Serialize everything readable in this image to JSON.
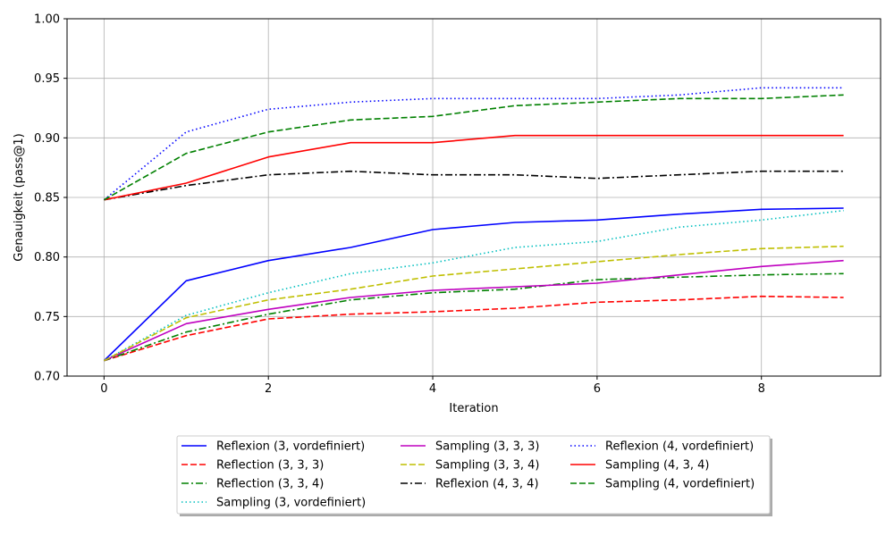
{
  "chart_data": {
    "type": "line",
    "title": "",
    "xlabel": "Iteration",
    "ylabel": "Genauigkeit (pass@1)",
    "xlim": [
      -0.45,
      9.45
    ],
    "ylim": [
      0.7,
      1.0
    ],
    "xticks": [
      0,
      2,
      4,
      6,
      8
    ],
    "yticks": [
      0.7,
      0.75,
      0.8,
      0.85,
      0.9,
      0.95,
      1.0
    ],
    "xtick_labels": [
      "0",
      "2",
      "4",
      "6",
      "8"
    ],
    "ytick_labels": [
      "0.70",
      "0.75",
      "0.80",
      "0.85",
      "0.90",
      "0.95",
      "1.00"
    ],
    "grid": true,
    "legend_position": "bottom-center",
    "x": [
      0,
      1,
      2,
      3,
      4,
      5,
      6,
      7,
      8,
      9
    ],
    "series": [
      {
        "name": "Reflexion (3, vordefiniert)",
        "color": "#0000ff",
        "style": "solid",
        "values": [
          0.713,
          0.78,
          0.797,
          0.808,
          0.823,
          0.829,
          0.831,
          0.836,
          0.84,
          0.841
        ]
      },
      {
        "name": "Reflection (3, 3, 3)",
        "color": "#ff0000",
        "style": "dashed",
        "values": [
          0.713,
          0.734,
          0.748,
          0.752,
          0.754,
          0.757,
          0.762,
          0.764,
          0.767,
          0.766
        ]
      },
      {
        "name": "Reflection (3, 3, 4)",
        "color": "#008000",
        "style": "dashdot",
        "values": [
          0.713,
          0.737,
          0.752,
          0.764,
          0.77,
          0.773,
          0.781,
          0.783,
          0.785,
          0.786
        ]
      },
      {
        "name": "Sampling (3, vordefiniert)",
        "color": "#00bfbf",
        "style": "dotted",
        "values": [
          0.713,
          0.751,
          0.77,
          0.786,
          0.795,
          0.808,
          0.813,
          0.825,
          0.831,
          0.839
        ]
      },
      {
        "name": "Sampling (3, 3, 3)",
        "color": "#bf00bf",
        "style": "solid",
        "values": [
          0.713,
          0.744,
          0.756,
          0.766,
          0.772,
          0.775,
          0.778,
          0.785,
          0.792,
          0.797
        ]
      },
      {
        "name": "Sampling (3, 3, 4)",
        "color": "#bfbf00",
        "style": "dashed",
        "values": [
          0.713,
          0.749,
          0.764,
          0.773,
          0.784,
          0.79,
          0.796,
          0.802,
          0.807,
          0.809
        ]
      },
      {
        "name": "Reflexion (4, 3, 4)",
        "color": "#000000",
        "style": "dashdot",
        "values": [
          0.848,
          0.86,
          0.869,
          0.872,
          0.869,
          0.869,
          0.866,
          0.869,
          0.872,
          0.872
        ]
      },
      {
        "name": "Reflexion (4, vordefiniert)",
        "color": "#0000ff",
        "style": "dotted",
        "values": [
          0.848,
          0.905,
          0.924,
          0.93,
          0.933,
          0.933,
          0.933,
          0.936,
          0.942,
          0.942
        ]
      },
      {
        "name": "Sampling (4, 3, 4)",
        "color": "#ff0000",
        "style": "solid",
        "values": [
          0.848,
          0.862,
          0.884,
          0.896,
          0.896,
          0.902,
          0.902,
          0.902,
          0.902,
          0.902
        ]
      },
      {
        "name": "Sampling (4, vordefiniert)",
        "color": "#008000",
        "style": "dashed",
        "values": [
          0.848,
          0.887,
          0.905,
          0.915,
          0.918,
          0.927,
          0.93,
          0.933,
          0.933,
          0.936
        ]
      }
    ]
  }
}
